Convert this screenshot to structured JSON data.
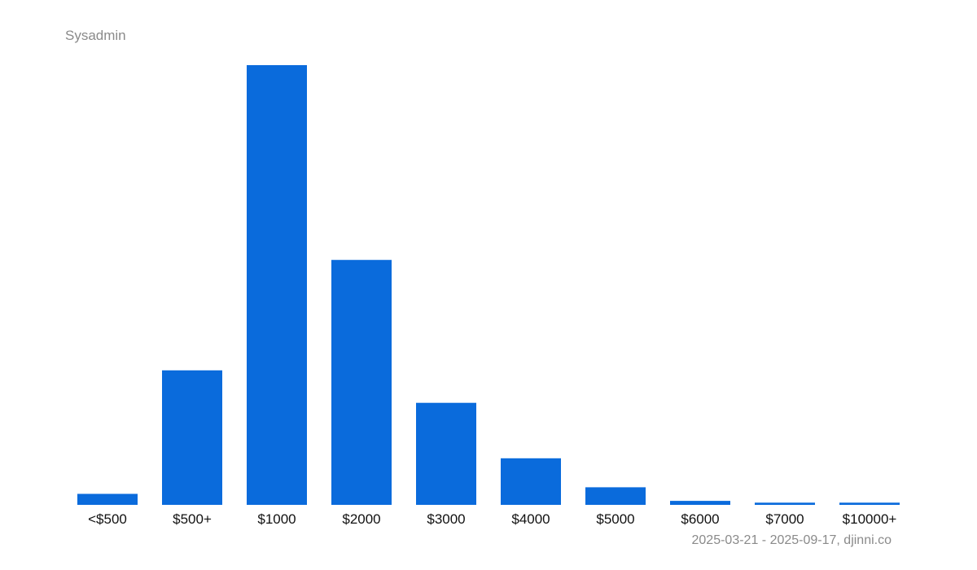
{
  "chart_data": {
    "type": "bar",
    "title": "Sysadmin",
    "subtitle": "2025-03-21 - 2025-09-17, djinni.co",
    "categories": [
      "<$500",
      "$500+",
      "$1000",
      "$2000",
      "$3000",
      "$4000",
      "$5000",
      "$6000",
      "$7000",
      "$10000+"
    ],
    "values": [
      2.5,
      30.6,
      100,
      55.7,
      23.2,
      10.6,
      4,
      0.9,
      0.5,
      0.5
    ],
    "xlabel": "",
    "ylabel": "",
    "ylim": [
      0,
      100
    ],
    "grid": false,
    "legend": "none",
    "colors": {
      "bar": "#0a6bdc"
    }
  }
}
